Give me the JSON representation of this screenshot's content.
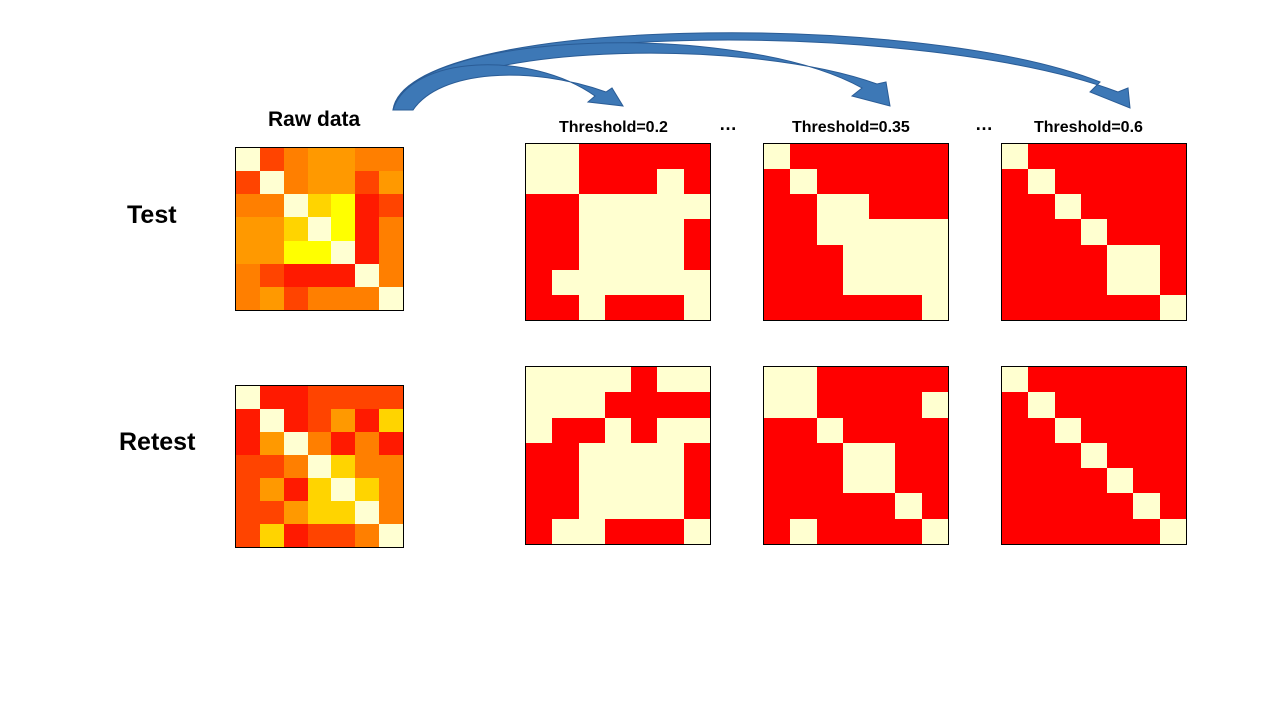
{
  "titles": {
    "raw": "Raw data",
    "thresholds": [
      "Threshold=0.2",
      "Threshold=0.35",
      "Threshold=0.6"
    ],
    "ellipsis": "…"
  },
  "rows": [
    "Test",
    "Retest"
  ],
  "colors": {
    "red": "#ff0000",
    "cream": "#ffffd0",
    "arrow": "#3d78b6",
    "raw_palette": {
      "W": "#ffffd2",
      "Y": "#ffff00",
      "G": "#ffd400",
      "O": "#ffaa00",
      "A": "#ff9900",
      "D": "#ff7f00",
      "R": "#ff4400",
      "X": "#ff1a00"
    }
  },
  "raw_matrices": {
    "test": [
      "WRDAADD",
      "RWDAARA",
      "DDWGYXR",
      "AAGWYXD",
      "AAYYWXD",
      "DRXXXWD",
      "DARDDDW"
    ],
    "retest": [
      "WXXRRRR",
      "XWXRAXG",
      "XAWDXDX",
      "RRDWGDD",
      "RAXGWGD",
      "RRAGGWD",
      "RGXRRDW"
    ]
  },
  "binary_matrices": {
    "test": [
      [
        "1100000",
        "1100010",
        "0011111",
        "0011110",
        "0011110",
        "0111111",
        "0010001"
      ],
      [
        "1000000",
        "0100000",
        "0011000",
        "0011111",
        "0001111",
        "0001111",
        "0000001"
      ],
      [
        "1000000",
        "0100000",
        "0010000",
        "0001000",
        "0000110",
        "0000110",
        "0000001"
      ]
    ],
    "retest": [
      [
        "1111011",
        "1110000",
        "1001011",
        "0011110",
        "0011110",
        "0011110",
        "0110001"
      ],
      [
        "1100000",
        "1100001",
        "0010000",
        "0001100",
        "0001100",
        "0000010",
        "0100001"
      ],
      [
        "1000000",
        "0100000",
        "0010000",
        "0001000",
        "0000100",
        "0000010",
        "0000001"
      ]
    ]
  }
}
